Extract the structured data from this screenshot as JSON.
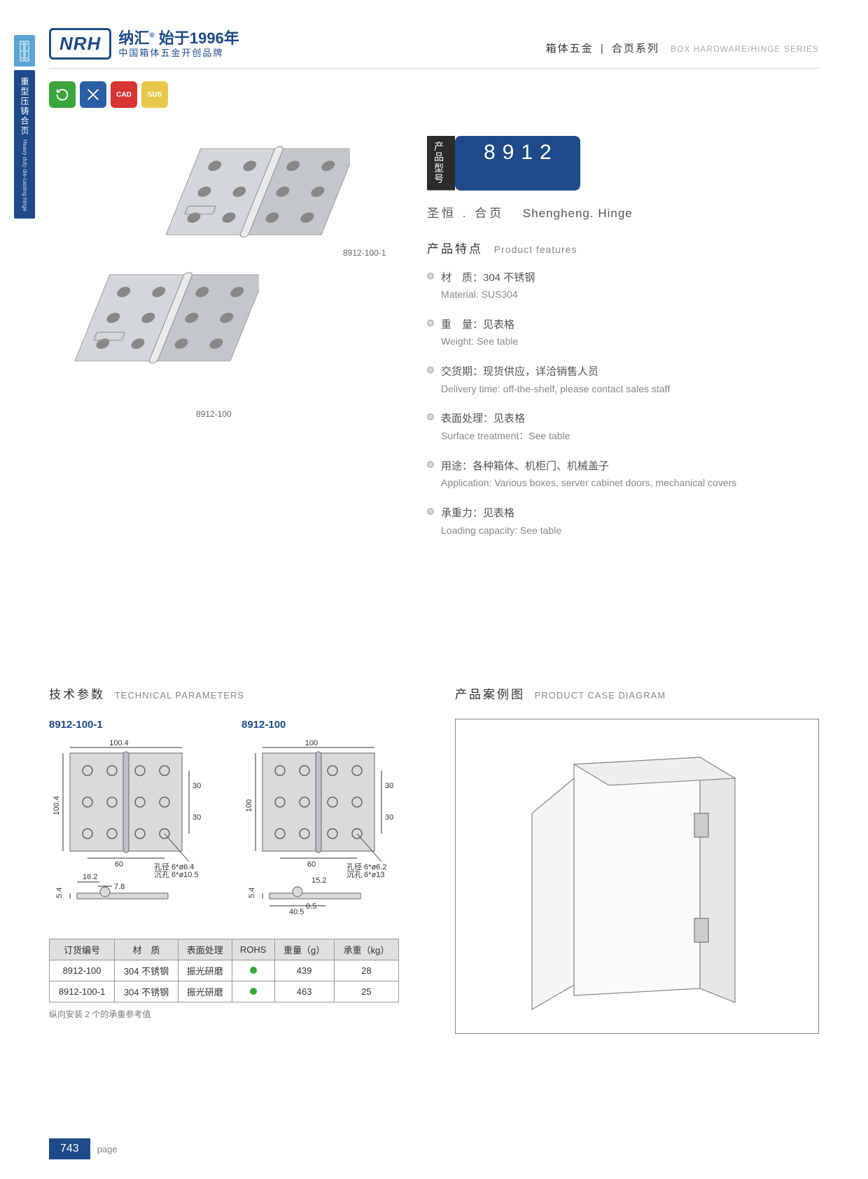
{
  "header": {
    "logo_text": "NRH",
    "brand_cn1_a": "纳汇",
    "brand_cn1_b": "始于1996年",
    "brand_cn2": "中国箱体五金开创品牌",
    "right_cn1": "箱体五金",
    "right_cn2": "合页系列",
    "right_en": "BOX HARDWARE/HINGE SERIES"
  },
  "side": {
    "tab_cn": "重型压铸合页",
    "tab_en": "Heavy duty die-casting hinge"
  },
  "badges": {
    "b1": "⟲",
    "b2": "✕",
    "b3": "CAD",
    "b4": "SUS"
  },
  "product_images": {
    "label1": "8912-100-1",
    "label2": "8912-100"
  },
  "model": {
    "label_l1": "产品",
    "label_l2": "型号",
    "number": "8912",
    "sub_cn": "圣恒 . 合页",
    "sub_en": "Shengheng. Hinge"
  },
  "features": {
    "title_cn": "产品特点",
    "title_en": "Product features",
    "items": [
      {
        "cn": "材　质：304 不锈钢",
        "en": "Material: SUS304"
      },
      {
        "cn": "重　量：见表格",
        "en": "Weight: See table"
      },
      {
        "cn": "交货期：现货供应，详洽销售人员",
        "en": "Delivery time: off-the-shelf, please contact sales staff"
      },
      {
        "cn": "表面处理：见表格",
        "en": "Surface treatment：See table"
      },
      {
        "cn": "用途：各种箱体、机柜门、机械盖子",
        "en": "Application: Various boxes, server cabinet doors, mechanical covers"
      },
      {
        "cn": "承重力：见表格",
        "en": "Loading capacity: See table"
      }
    ]
  },
  "tech": {
    "title_cn": "技术参数",
    "title_en": "TECHNICAL PARAMETERS",
    "drawings": [
      {
        "title": "8912-100-1",
        "width": "100.4",
        "height": "100.4",
        "hole_dist": "60",
        "row_gap": "30",
        "hole_text1": "孔径 6*ø6.4",
        "hole_text2": "沉孔 6*ø10.5",
        "side_a": "16.2",
        "side_b": "7.8",
        "side_h": "5.4"
      },
      {
        "title": "8912-100",
        "width": "100",
        "height": "100",
        "hole_dist": "60",
        "row_gap": "30",
        "hole_text1": "孔径 6*ø6.2",
        "hole_text2": "沉孔 6*ø13",
        "side_a": "15.2",
        "side_b": "40.5",
        "side_h": "5.4",
        "side_c": "0.5"
      }
    ],
    "table": {
      "columns": [
        "订货编号",
        "材　质",
        "表面处理",
        "ROHS",
        "重量（g）",
        "承重（kg）"
      ],
      "rows": [
        [
          "8912-100",
          "304 不锈钢",
          "振光研磨",
          "●",
          "439",
          "28"
        ],
        [
          "8912-100-1",
          "304 不锈钢",
          "振光研磨",
          "●",
          "463",
          "25"
        ]
      ],
      "note": "纵向安装 2 个的承重参考值"
    }
  },
  "case": {
    "title_cn": "产品案例图",
    "title_en": "PRODUCT CASE DIAGRAM"
  },
  "footer": {
    "page_number": "743",
    "page_label": "page"
  },
  "colors": {
    "brand": "#1e4a8a",
    "accent_light": "#5ba4d6",
    "green": "#3aa53a",
    "red": "#d93434",
    "yellow": "#e8c84a",
    "text": "#333333",
    "muted": "#888888"
  }
}
